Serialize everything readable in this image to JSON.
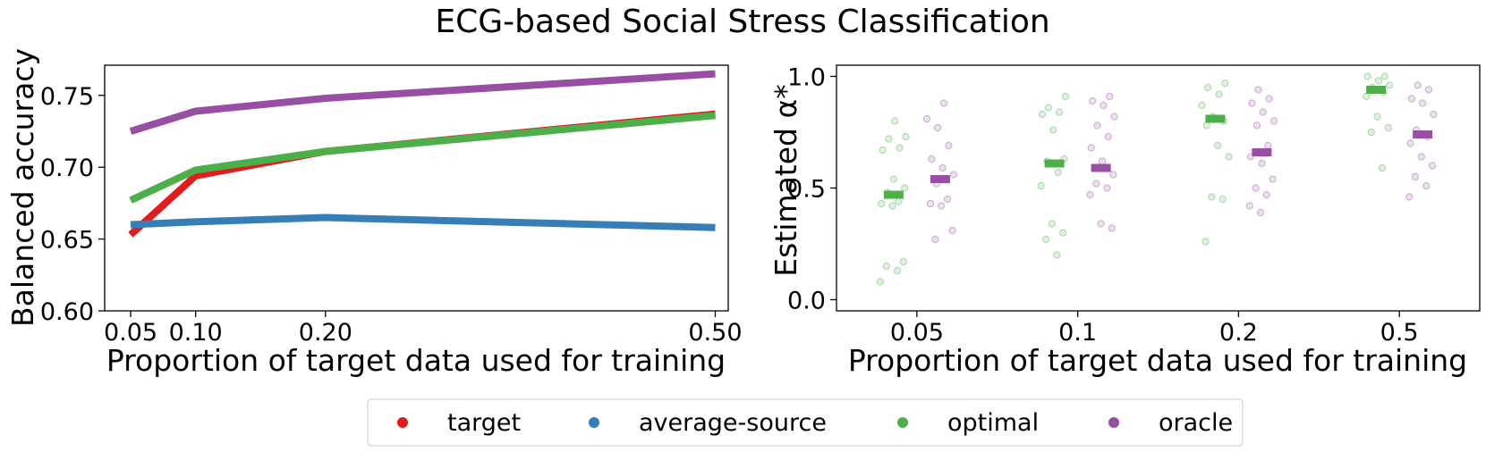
{
  "figure": {
    "title": "ECG-based Social Stress Classification"
  },
  "legend": {
    "placement": "bottom-center",
    "entries": [
      {
        "label": "target",
        "color": "#e41a1c"
      },
      {
        "label": "average-source",
        "color": "#377eb8"
      },
      {
        "label": "optimal",
        "color": "#4daf4a"
      },
      {
        "label": "oracle",
        "color": "#984ea3"
      }
    ]
  },
  "chart_data": [
    {
      "type": "line",
      "title": "",
      "xlabel": "Proportion of target data used for training",
      "ylabel": "Balanced accuracy",
      "x": [
        0.05,
        0.1,
        0.2,
        0.5
      ],
      "xticks": [
        "0.05",
        "0.10",
        "0.20",
        "0.50"
      ],
      "yticks": [
        "0.60",
        "0.65",
        "0.70",
        "0.75"
      ],
      "xlim": [
        0.03,
        0.51
      ],
      "ylim": [
        0.6,
        0.771
      ],
      "grid": false,
      "series": [
        {
          "name": "target",
          "color": "#e41a1c",
          "values": [
            0.653,
            0.694,
            0.711,
            0.737
          ]
        },
        {
          "name": "average-source",
          "color": "#377eb8",
          "values": [
            0.66,
            0.662,
            0.665,
            0.658
          ]
        },
        {
          "name": "optimal",
          "color": "#4daf4a",
          "values": [
            0.677,
            0.698,
            0.711,
            0.736
          ]
        },
        {
          "name": "oracle",
          "color": "#984ea3",
          "values": [
            0.725,
            0.739,
            0.748,
            0.765
          ]
        }
      ]
    },
    {
      "type": "scatter",
      "title": "",
      "xlabel": "Proportion of target data used for training",
      "ylabel": "Estimated α*",
      "categories": [
        "0.05",
        "0.1",
        "0.2",
        "0.5"
      ],
      "yticks": [
        "0.0",
        "0.5",
        "1.0"
      ],
      "ylim": [
        -0.05,
        1.05
      ],
      "grid": false,
      "series": [
        {
          "name": "optimal",
          "color": "#4daf4a",
          "means": [
            0.47,
            0.61,
            0.81,
            0.94
          ],
          "points": [
            [
              0.08,
              0.13,
              0.15,
              0.17,
              0.42,
              0.43,
              0.44,
              0.48,
              0.5,
              0.54,
              0.67,
              0.68,
              0.72,
              0.73,
              0.8
            ],
            [
              0.2,
              0.27,
              0.3,
              0.34,
              0.51,
              0.57,
              0.62,
              0.63,
              0.76,
              0.83,
              0.84,
              0.86,
              0.91
            ],
            [
              0.26,
              0.45,
              0.46,
              0.64,
              0.69,
              0.78,
              0.8,
              0.82,
              0.87,
              0.92,
              0.95,
              0.97
            ],
            [
              0.59,
              0.75,
              0.77,
              0.82,
              0.91,
              0.93,
              0.95,
              0.96,
              0.98,
              1.0,
              1.0
            ]
          ]
        },
        {
          "name": "oracle",
          "color": "#984ea3",
          "means": [
            0.54,
            0.59,
            0.66,
            0.74
          ],
          "points": [
            [
              0.27,
              0.31,
              0.42,
              0.43,
              0.45,
              0.52,
              0.56,
              0.59,
              0.63,
              0.69,
              0.77,
              0.81,
              0.88
            ],
            [
              0.32,
              0.34,
              0.47,
              0.5,
              0.52,
              0.56,
              0.62,
              0.68,
              0.73,
              0.78,
              0.82,
              0.87,
              0.89,
              0.91
            ],
            [
              0.39,
              0.42,
              0.47,
              0.5,
              0.54,
              0.61,
              0.64,
              0.69,
              0.78,
              0.8,
              0.84,
              0.88,
              0.9,
              0.94
            ],
            [
              0.46,
              0.51,
              0.55,
              0.6,
              0.64,
              0.7,
              0.73,
              0.76,
              0.83,
              0.88,
              0.9,
              0.94,
              0.96
            ]
          ]
        }
      ]
    }
  ]
}
